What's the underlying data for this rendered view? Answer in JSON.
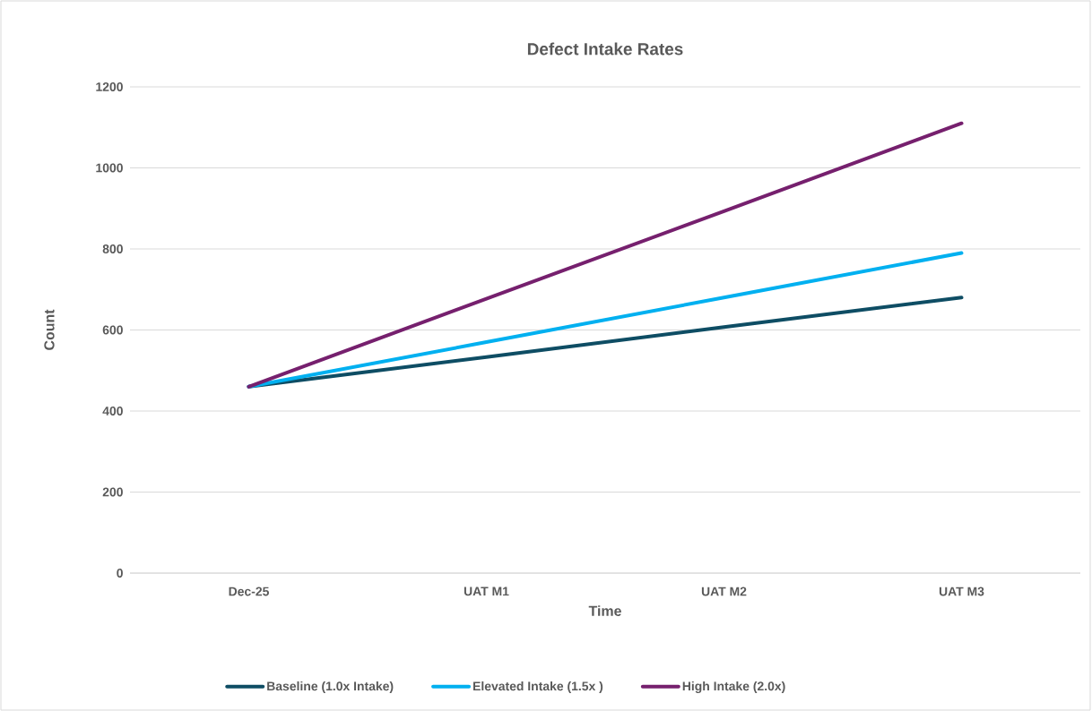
{
  "chart_data": {
    "type": "line",
    "title": "Defect Intake Rates",
    "xlabel": "Time",
    "ylabel": "Count",
    "categories": [
      "Dec-25",
      "UAT M1",
      "UAT M2",
      "UAT M3"
    ],
    "series": [
      {
        "name": "Baseline (1.0x Intake)",
        "color": "#0e4d64",
        "values": [
          460,
          533,
          607,
          680
        ]
      },
      {
        "name": "Elevated Intake (1.5x )",
        "color": "#00b0f0",
        "values": [
          460,
          570,
          680,
          790
        ]
      },
      {
        "name": "High Intake (2.0x)",
        "color": "#76206e",
        "values": [
          460,
          677,
          893,
          1110
        ]
      }
    ],
    "ylim": [
      0,
      1200
    ],
    "yticks": [
      0,
      200,
      400,
      600,
      800,
      1000,
      1200
    ],
    "grid": "y",
    "legend": "bottom",
    "marker": "none",
    "line_style": "solid"
  }
}
